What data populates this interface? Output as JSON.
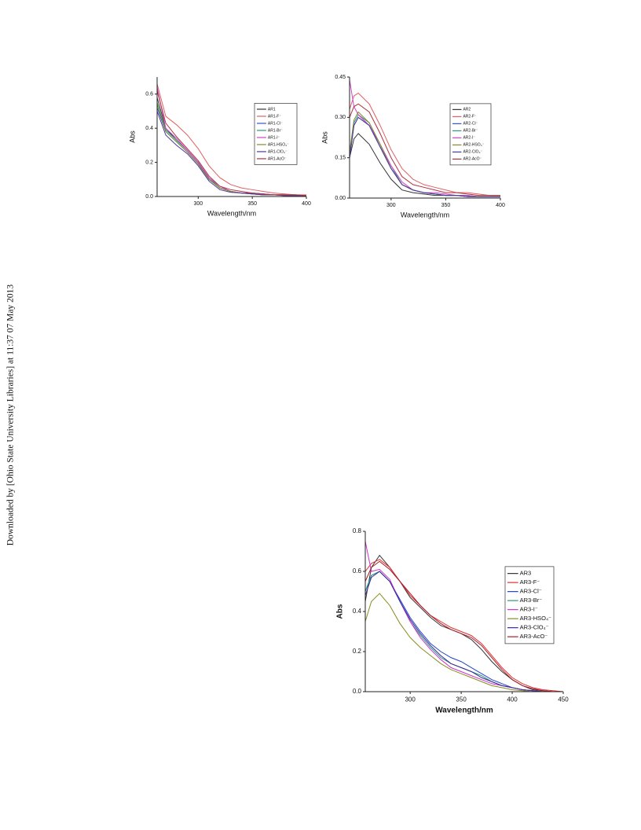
{
  "sidebar": "Downloaded by [Ohio State University Libraries] at 11:37 07 May 2013",
  "chart_data": [
    {
      "type": "line",
      "xlabel": "Wavelength/nm",
      "ylabel": "Abs",
      "legend": "upper right",
      "xlim": [
        262,
        400
      ],
      "xticks": [
        300,
        350,
        400
      ],
      "ylim": [
        0,
        0.7
      ],
      "yticks": [
        {
          "value": 0,
          "label": "0.0"
        },
        0.2,
        0.4,
        0.6
      ],
      "x": [
        262,
        270,
        280,
        290,
        300,
        310,
        320,
        330,
        340,
        350,
        360,
        370,
        380,
        390,
        400
      ],
      "series": [
        {
          "name": "AR1",
          "color": "#333333",
          "values": [
            0.58,
            0.4,
            0.33,
            0.27,
            0.2,
            0.1,
            0.05,
            0.03,
            0.02,
            0.02,
            0.015,
            0.01,
            0.01,
            0.01,
            0.005
          ]
        },
        {
          "name": "AR1-F⁻",
          "color": "#e06060",
          "values": [
            0.66,
            0.47,
            0.42,
            0.36,
            0.28,
            0.18,
            0.11,
            0.07,
            0.05,
            0.04,
            0.03,
            0.02,
            0.015,
            0.01,
            0.01
          ]
        },
        {
          "name": "AR1-Cl⁻",
          "color": "#3355cc",
          "values": [
            0.52,
            0.38,
            0.32,
            0.26,
            0.19,
            0.1,
            0.05,
            0.03,
            0.02,
            0.015,
            0.01,
            0.01,
            0.01,
            0.005,
            0.005
          ]
        },
        {
          "name": "AR1-Br⁻",
          "color": "#2a9a7a",
          "values": [
            0.55,
            0.39,
            0.33,
            0.27,
            0.2,
            0.11,
            0.05,
            0.03,
            0.02,
            0.015,
            0.01,
            0.01,
            0.005,
            0.005,
            0.005
          ]
        },
        {
          "name": "AR1-I⁻",
          "color": "#d040d0",
          "values": [
            0.64,
            0.4,
            0.34,
            0.27,
            0.2,
            0.11,
            0.06,
            0.03,
            0.02,
            0.02,
            0.015,
            0.01,
            0.01,
            0.005,
            0.005
          ]
        },
        {
          "name": "AR1-HSO₄⁻",
          "color": "#8a8a30",
          "values": [
            0.54,
            0.38,
            0.32,
            0.26,
            0.19,
            0.1,
            0.05,
            0.03,
            0.02,
            0.015,
            0.01,
            0.01,
            0.005,
            0.005,
            0.005
          ]
        },
        {
          "name": "AR1-ClO₄⁻",
          "color": "#4a3a99",
          "values": [
            0.5,
            0.36,
            0.3,
            0.25,
            0.18,
            0.09,
            0.04,
            0.025,
            0.02,
            0.015,
            0.01,
            0.01,
            0.005,
            0.005,
            0.005
          ]
        },
        {
          "name": "AR1-AcO⁻",
          "color": "#b03040",
          "values": [
            0.62,
            0.43,
            0.35,
            0.28,
            0.21,
            0.12,
            0.06,
            0.04,
            0.03,
            0.02,
            0.015,
            0.01,
            0.01,
            0.01,
            0.005
          ]
        }
      ]
    },
    {
      "type": "line",
      "xlabel": "Wavelength/nm",
      "ylabel": "Abs",
      "legend": "upper right",
      "xlim": [
        262,
        400
      ],
      "xticks": [
        300,
        350,
        400
      ],
      "ylim": [
        0,
        0.45
      ],
      "yticks": [
        {
          "value": 0,
          "label": "0.00"
        },
        0.15,
        {
          "value": 0.3,
          "label": "0.30"
        },
        0.45
      ],
      "x": [
        262,
        266,
        270,
        280,
        290,
        300,
        310,
        320,
        330,
        340,
        350,
        360,
        370,
        380,
        390,
        400
      ],
      "series": [
        {
          "name": "AR2",
          "color": "#333333",
          "values": [
            0.15,
            0.22,
            0.24,
            0.2,
            0.13,
            0.07,
            0.03,
            0.02,
            0.015,
            0.01,
            0.01,
            0.01,
            0.005,
            0.005,
            0.005,
            0.005
          ]
        },
        {
          "name": "AR2-F⁻",
          "color": "#e06060",
          "values": [
            0.33,
            0.38,
            0.39,
            0.35,
            0.27,
            0.18,
            0.11,
            0.07,
            0.05,
            0.04,
            0.03,
            0.02,
            0.02,
            0.015,
            0.01,
            0.01
          ]
        },
        {
          "name": "AR2-Cl⁻",
          "color": "#3355cc",
          "values": [
            0.15,
            0.27,
            0.3,
            0.27,
            0.19,
            0.11,
            0.05,
            0.03,
            0.02,
            0.015,
            0.01,
            0.01,
            0.01,
            0.005,
            0.005,
            0.005
          ]
        },
        {
          "name": "AR2-Br⁻",
          "color": "#2a9a7a",
          "values": [
            0.16,
            0.28,
            0.31,
            0.28,
            0.2,
            0.12,
            0.05,
            0.03,
            0.02,
            0.015,
            0.01,
            0.01,
            0.01,
            0.005,
            0.005,
            0.005
          ]
        },
        {
          "name": "AR2-I⁻",
          "color": "#d040d0",
          "values": [
            0.44,
            0.34,
            0.31,
            0.27,
            0.2,
            0.12,
            0.06,
            0.03,
            0.02,
            0.02,
            0.015,
            0.01,
            0.01,
            0.005,
            0.005,
            0.005
          ]
        },
        {
          "name": "AR2-HSO₄⁻",
          "color": "#8a8a30",
          "values": [
            0.17,
            0.29,
            0.32,
            0.28,
            0.2,
            0.11,
            0.05,
            0.03,
            0.02,
            0.015,
            0.01,
            0.01,
            0.005,
            0.005,
            0.005,
            0.005
          ]
        },
        {
          "name": "AR2-ClO₄⁻",
          "color": "#4a3a99",
          "values": [
            0.15,
            0.27,
            0.3,
            0.27,
            0.19,
            0.11,
            0.05,
            0.03,
            0.02,
            0.015,
            0.01,
            0.01,
            0.005,
            0.005,
            0.005,
            0.005
          ]
        },
        {
          "name": "AR2-AcO⁻",
          "color": "#b03040",
          "values": [
            0.3,
            0.34,
            0.35,
            0.32,
            0.24,
            0.15,
            0.08,
            0.05,
            0.04,
            0.03,
            0.02,
            0.02,
            0.015,
            0.01,
            0.01,
            0.01
          ]
        }
      ]
    },
    {
      "type": "line",
      "xlabel": "Wavelength/nm",
      "ylabel": "Abs",
      "legend": "upper right",
      "xlim": [
        256,
        450
      ],
      "xticks": [
        300,
        350,
        400,
        450
      ],
      "ylim": [
        0,
        0.8
      ],
      "yticks": [
        {
          "value": 0,
          "label": "0.0"
        },
        0.2,
        0.4,
        0.6,
        0.8
      ],
      "x": [
        256,
        262,
        270,
        280,
        290,
        300,
        310,
        320,
        330,
        340,
        350,
        360,
        370,
        380,
        390,
        400,
        410,
        420,
        430,
        440,
        450
      ],
      "series": [
        {
          "name": "AR3",
          "color": "#333333",
          "values": [
            0.45,
            0.62,
            0.68,
            0.62,
            0.55,
            0.47,
            0.42,
            0.37,
            0.33,
            0.31,
            0.29,
            0.26,
            0.21,
            0.15,
            0.1,
            0.06,
            0.03,
            0.01,
            0.005,
            0,
            0
          ]
        },
        {
          "name": "AR3-F⁻",
          "color": "#e03030",
          "values": [
            0.6,
            0.64,
            0.66,
            0.62,
            0.55,
            0.48,
            0.43,
            0.38,
            0.35,
            0.32,
            0.3,
            0.28,
            0.24,
            0.18,
            0.12,
            0.07,
            0.04,
            0.02,
            0.01,
            0.005,
            0
          ]
        },
        {
          "name": "AR3-Cl⁻",
          "color": "#2244cc",
          "values": [
            0.5,
            0.58,
            0.6,
            0.55,
            0.46,
            0.37,
            0.3,
            0.24,
            0.2,
            0.17,
            0.15,
            0.12,
            0.09,
            0.06,
            0.04,
            0.02,
            0.01,
            0.005,
            0,
            0,
            0
          ]
        },
        {
          "name": "AR3-Br⁻",
          "color": "#2a9a7a",
          "values": [
            0.5,
            0.58,
            0.6,
            0.55,
            0.45,
            0.35,
            0.28,
            0.22,
            0.17,
            0.14,
            0.12,
            0.1,
            0.08,
            0.05,
            0.03,
            0.02,
            0.01,
            0.005,
            0,
            0,
            0
          ]
        },
        {
          "name": "AR3-I⁻",
          "color": "#d030d0",
          "values": [
            0.75,
            0.6,
            0.61,
            0.56,
            0.45,
            0.35,
            0.27,
            0.21,
            0.16,
            0.12,
            0.1,
            0.08,
            0.06,
            0.04,
            0.03,
            0.02,
            0.01,
            0.005,
            0,
            0,
            0
          ]
        },
        {
          "name": "AR3-HSO₄⁻",
          "color": "#8a8a20",
          "values": [
            0.35,
            0.45,
            0.49,
            0.43,
            0.34,
            0.27,
            0.22,
            0.18,
            0.14,
            0.11,
            0.09,
            0.07,
            0.05,
            0.03,
            0.02,
            0.01,
            0.005,
            0,
            0,
            0,
            0
          ]
        },
        {
          "name": "AR3-ClO₄⁻",
          "color": "#3a2a99",
          "values": [
            0.48,
            0.57,
            0.6,
            0.55,
            0.45,
            0.36,
            0.29,
            0.23,
            0.18,
            0.14,
            0.12,
            0.1,
            0.07,
            0.05,
            0.03,
            0.02,
            0.01,
            0.005,
            0,
            0,
            0
          ]
        },
        {
          "name": "AR3-AcO⁻",
          "color": "#aa1a2a",
          "values": [
            0.55,
            0.62,
            0.65,
            0.61,
            0.55,
            0.49,
            0.43,
            0.38,
            0.34,
            0.31,
            0.29,
            0.27,
            0.23,
            0.17,
            0.11,
            0.06,
            0.03,
            0.015,
            0.005,
            0,
            0
          ]
        }
      ]
    }
  ]
}
